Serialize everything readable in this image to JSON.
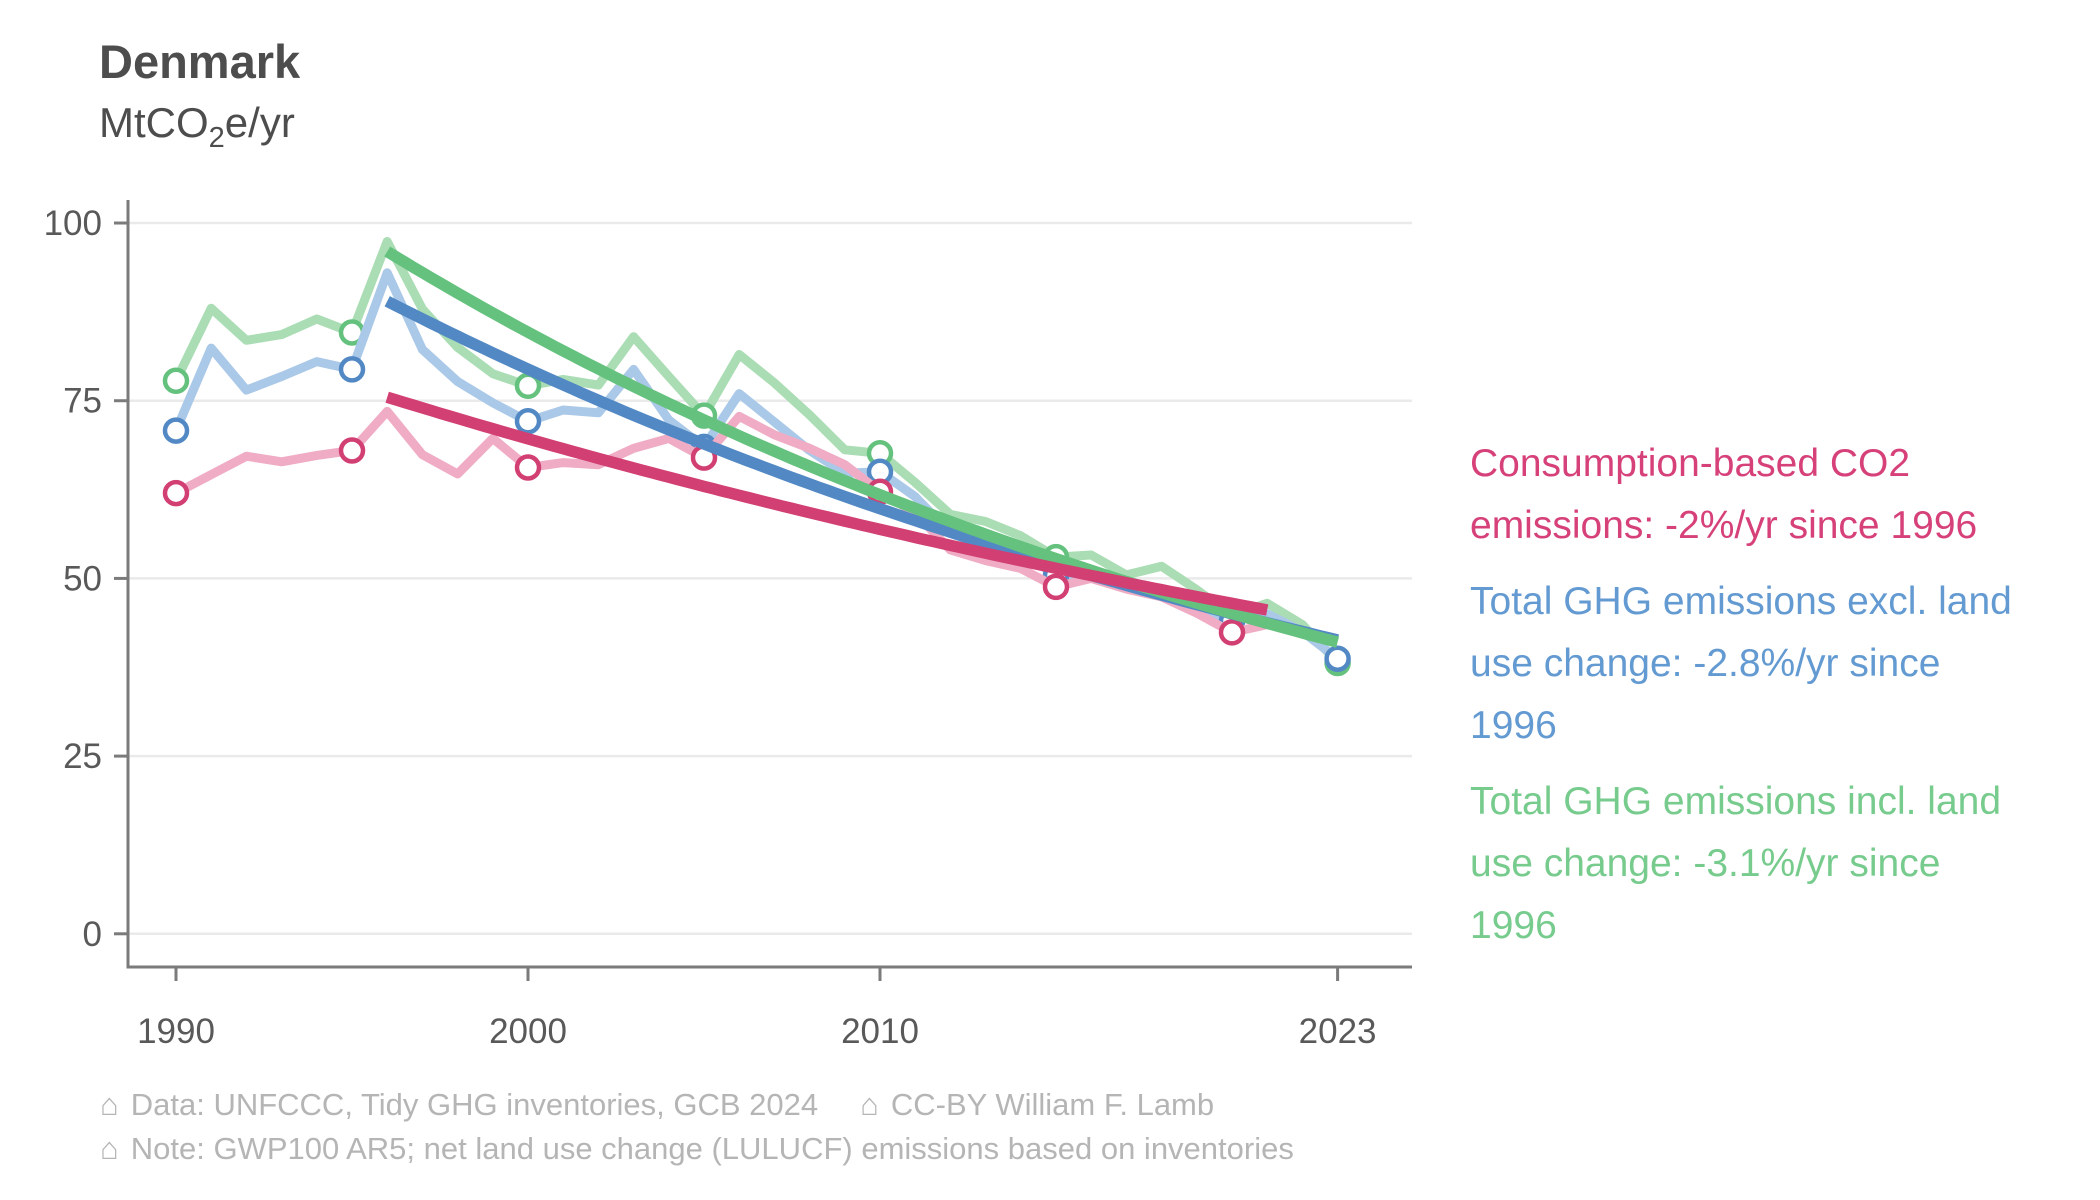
{
  "header": {
    "title": "Denmark",
    "unit": {
      "pre": "MtCO",
      "sub": "2",
      "post": "e/yr"
    }
  },
  "legend": {
    "entries": [
      {
        "id": "consumption-co2",
        "lines": [
          "Consumption-based CO2",
          "emissions: -2%/yr since 1996"
        ],
        "color": "#d6417a"
      },
      {
        "id": "ghg-excl-luc",
        "lines": [
          "Total GHG emissions excl. land",
          "use change: -2.8%/yr since",
          "1996"
        ],
        "color": "#639ad1"
      },
      {
        "id": "ghg-incl-luc",
        "lines": [
          "Total GHG emissions incl. land",
          "use change: -3.1%/yr since",
          "1996"
        ],
        "color": "#76cb8d"
      }
    ]
  },
  "footer": {
    "house_glyph": "⌂",
    "line1a": "Data: UNFCCC, Tidy GHG inventories, GCB 2024",
    "line1b": "CC-BY William F. Lamb",
    "line2": "Note: GWP100 AR5; net land use change (LULUCF) emissions based on inventories"
  },
  "chart_data": {
    "type": "line",
    "title": "Denmark",
    "xlabel": "",
    "ylabel": "MtCO2e/yr",
    "ylim": [
      0,
      100
    ],
    "xlim": [
      1988.5,
      2025
    ],
    "grid": "horizontal",
    "legend_position": "right",
    "x_ticks": [
      1990,
      2000,
      2010,
      2023
    ],
    "y_ticks": [
      0,
      25,
      50,
      75,
      100
    ],
    "marker_years": [
      1990,
      1995,
      2000,
      2005,
      2010,
      2015,
      2020
    ],
    "series": [
      {
        "name": "Total GHG emissions incl. land use change",
        "color_light": "#abddb5",
        "color_dark": "#65c27e",
        "start_year": 1990,
        "end_marker": true,
        "values": [
          77.8,
          88.0,
          83.5,
          84.3,
          86.5,
          84.6,
          97.4,
          87.9,
          82.5,
          78.8,
          77.1,
          78.0,
          77.2,
          84.0,
          78.4,
          72.9,
          81.5,
          77.5,
          73.0,
          68.1,
          67.6,
          63.5,
          59.0,
          58.0,
          56.0,
          53.0,
          53.3,
          50.5,
          51.7,
          48.4,
          44.8,
          46.5,
          43.5,
          38.1
        ],
        "trend": {
          "label": "-3.1%/yr since 1996",
          "start_year": 1996,
          "end_year": 2023,
          "start_value": 96.0,
          "rate_pct_per_yr": -3.1
        }
      },
      {
        "name": "Total GHG emissions excl. land use change",
        "color_light": "#aac8e8",
        "color_dark": "#5289c5",
        "start_year": 1990,
        "end_marker": true,
        "values": [
          70.8,
          82.4,
          76.5,
          78.4,
          80.5,
          79.4,
          93.0,
          82.2,
          77.7,
          74.7,
          72.1,
          73.7,
          73.3,
          79.4,
          72.3,
          68.5,
          76.0,
          72.0,
          68.0,
          64.8,
          65.0,
          61.5,
          56.4,
          56.3,
          53.8,
          50.4,
          50.5,
          49.3,
          48.0,
          45.6,
          44.0,
          45.0,
          42.5,
          38.7
        ],
        "trend": {
          "label": "-2.8%/yr since 1996",
          "start_year": 1996,
          "end_year": 2023,
          "start_value": 89.0,
          "rate_pct_per_yr": -2.8
        }
      },
      {
        "name": "Consumption-based CO2 emissions",
        "color_light": "#efacc4",
        "color_dark": "#d23f72",
        "start_year": 1990,
        "end_marker": false,
        "values": [
          62.0,
          64.6,
          67.2,
          66.4,
          67.3,
          68.0,
          73.5,
          67.4,
          64.7,
          69.7,
          65.6,
          66.3,
          66.0,
          68.3,
          69.7,
          67.0,
          72.8,
          70.2,
          68.3,
          66.0,
          62.2,
          59.2,
          54.0,
          52.5,
          51.4,
          48.8,
          50.0,
          48.5,
          47.4,
          45.1,
          42.4,
          43.5
        ],
        "trend": {
          "label": "-2%/yr since 1996",
          "start_year": 1996,
          "end_year": 2021,
          "start_value": 75.5,
          "rate_pct_per_yr": -2.0
        }
      }
    ]
  }
}
